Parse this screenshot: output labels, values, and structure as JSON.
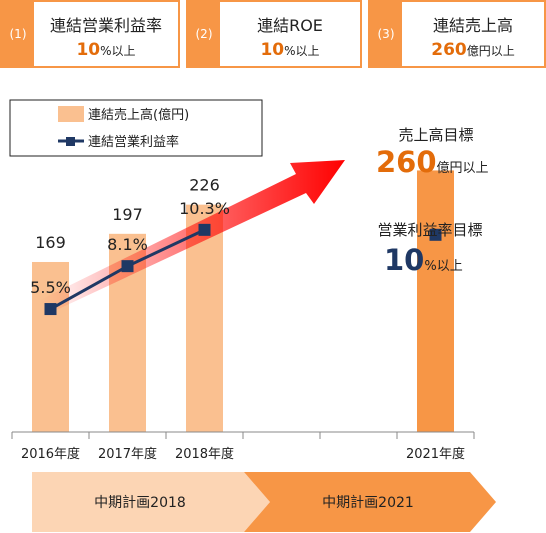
{
  "kpis": [
    {
      "number": "(1)",
      "title": "連結営業利益率",
      "value": "10",
      "unit": "%以上"
    },
    {
      "number": "(2)",
      "title": "連結ROE",
      "value": "10",
      "unit": "%以上"
    },
    {
      "number": "(3)",
      "title": "連結売上高",
      "value": "260",
      "unit": "億円以上"
    }
  ],
  "targets": {
    "sales_label": "売上高目標",
    "sales_value": "260",
    "sales_unit": "億円以上",
    "margin_label": "営業利益率目標",
    "margin_value": "10",
    "margin_unit": "%以上"
  },
  "plans": [
    {
      "label": "中期計画2018"
    },
    {
      "label": "中期計画2021"
    }
  ],
  "colors": {
    "bar_light": "#fac090",
    "bar_target": "#f79646",
    "line": "#1f3864",
    "accent": "#e36c0a",
    "arrow": "#ff0000",
    "plan2018": "#fcd5b4",
    "plan2021": "#f79646"
  },
  "chart_data": {
    "type": "bar",
    "categories": [
      "2016年度",
      "2017年度",
      "2018年度",
      "",
      "",
      "2021年度"
    ],
    "series": [
      {
        "name": "連結売上高(億円)",
        "type": "bar",
        "values": [
          169,
          197,
          226,
          null,
          null,
          260
        ],
        "labels": [
          "169",
          "197",
          "226",
          "",
          "",
          ""
        ]
      },
      {
        "name": "連結営業利益率",
        "type": "line",
        "values": [
          5.5,
          8.1,
          10.3,
          null,
          null,
          10
        ],
        "labels": [
          "5.5%",
          "8.1%",
          "10.3%",
          "",
          "",
          ""
        ]
      }
    ],
    "legend": "top-left",
    "grid": false
  }
}
